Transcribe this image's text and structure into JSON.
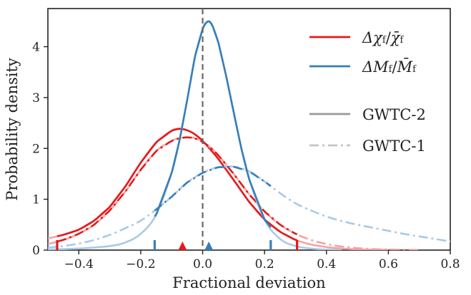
{
  "chart_data": {
    "type": "line",
    "xlabel": "Fractional deviation",
    "ylabel": "Probability density",
    "xlim": [
      -0.5,
      0.8
    ],
    "ylim": [
      0,
      4.75
    ],
    "xticks": [
      -0.4,
      -0.2,
      0.0,
      0.2,
      0.4,
      0.6,
      0.8
    ],
    "xtick_labels": [
      "−0.4",
      "−0.2",
      "0.0",
      "0.2",
      "0.4",
      "0.6",
      "0.8"
    ],
    "yticks": [
      0,
      1,
      2,
      3,
      4
    ],
    "ytick_labels": [
      "0",
      "1",
      "2",
      "3",
      "4"
    ],
    "vertical_reference_line": 0.0,
    "colors": {
      "chi": "#e41a1c",
      "mass": "#377eb8",
      "chi_faded": "#f4a3a4",
      "mass_faded": "#a9c9e6",
      "style_solid": "#999999",
      "style_dashdot": "#c4c4c4",
      "reference": "#666666"
    },
    "series": [
      {
        "key": "chi_gwtc2",
        "color": "chi",
        "style": "solid",
        "x": [
          -0.5,
          -0.45,
          -0.4,
          -0.35,
          -0.3,
          -0.25,
          -0.2,
          -0.15,
          -0.1,
          -0.075,
          -0.05,
          -0.025,
          0.0,
          0.025,
          0.05,
          0.1,
          0.15,
          0.2,
          0.25,
          0.3,
          0.35,
          0.4,
          0.45,
          0.5,
          0.55,
          0.6
        ],
        "y": [
          0.23,
          0.3,
          0.4,
          0.58,
          0.85,
          1.25,
          1.72,
          2.12,
          2.35,
          2.39,
          2.36,
          2.28,
          2.15,
          1.98,
          1.8,
          1.38,
          0.95,
          0.6,
          0.36,
          0.2,
          0.11,
          0.06,
          0.03,
          0.015,
          0.008,
          0.004
        ]
      },
      {
        "key": "chi_gwtc1",
        "color": "chi",
        "style": "dashdot",
        "x": [
          -0.5,
          -0.45,
          -0.4,
          -0.35,
          -0.3,
          -0.25,
          -0.2,
          -0.15,
          -0.1,
          -0.075,
          -0.05,
          -0.025,
          0.0,
          0.025,
          0.05,
          0.1,
          0.15,
          0.2,
          0.25,
          0.3,
          0.35,
          0.4,
          0.45,
          0.5,
          0.55,
          0.6,
          0.65,
          0.7
        ],
        "y": [
          0.12,
          0.2,
          0.32,
          0.5,
          0.78,
          1.15,
          1.58,
          1.95,
          2.15,
          2.2,
          2.22,
          2.2,
          2.13,
          2.02,
          1.87,
          1.5,
          1.1,
          0.76,
          0.5,
          0.32,
          0.2,
          0.12,
          0.07,
          0.04,
          0.02,
          0.012,
          0.006,
          0.003
        ]
      },
      {
        "key": "mass_gwtc2",
        "color": "mass",
        "style": "solid",
        "x": [
          -0.5,
          -0.4,
          -0.3,
          -0.25,
          -0.2,
          -0.15,
          -0.1,
          -0.075,
          -0.05,
          -0.025,
          0.0,
          0.01,
          0.02,
          0.03,
          0.05,
          0.075,
          0.1,
          0.125,
          0.15,
          0.2,
          0.25,
          0.3,
          0.35,
          0.4,
          0.45
        ],
        "y": [
          0.01,
          0.03,
          0.08,
          0.15,
          0.32,
          0.7,
          1.52,
          2.15,
          2.95,
          3.8,
          4.35,
          4.47,
          4.5,
          4.44,
          4.1,
          3.45,
          2.72,
          2.0,
          1.4,
          0.6,
          0.22,
          0.08,
          0.03,
          0.01,
          0.004
        ]
      },
      {
        "key": "mass_gwtc1",
        "color": "mass",
        "style": "dashdot",
        "x": [
          -0.5,
          -0.45,
          -0.4,
          -0.35,
          -0.3,
          -0.25,
          -0.2,
          -0.15,
          -0.1,
          -0.05,
          0.0,
          0.05,
          0.1,
          0.15,
          0.2,
          0.25,
          0.3,
          0.35,
          0.4,
          0.45,
          0.5,
          0.55,
          0.6,
          0.65,
          0.7,
          0.75,
          0.8
        ],
        "y": [
          0.05,
          0.08,
          0.13,
          0.2,
          0.3,
          0.43,
          0.58,
          0.8,
          1.05,
          1.33,
          1.52,
          1.63,
          1.64,
          1.55,
          1.35,
          1.12,
          0.92,
          0.78,
          0.66,
          0.57,
          0.5,
          0.44,
          0.38,
          0.32,
          0.27,
          0.22,
          0.17
        ]
      }
    ],
    "interval_ticks": [
      {
        "color": "chi",
        "x": -0.47
      },
      {
        "color": "chi",
        "x": 0.305
      },
      {
        "color": "mass",
        "x": -0.155
      },
      {
        "color": "mass",
        "x": 0.22
      }
    ],
    "markers": [
      {
        "color": "chi",
        "x": -0.065
      },
      {
        "color": "mass",
        "x": 0.02
      }
    ],
    "legend": {
      "placement": "top-right",
      "entries": [
        {
          "color": "chi",
          "style": "solid",
          "symbol": "Δχ",
          "sub": "f",
          "sep": "/",
          "symbol2": "χ̄",
          "sub2": "f"
        },
        {
          "color": "mass",
          "style": "solid",
          "symbol": "ΔM",
          "sub": "f",
          "sep": "/",
          "symbol2": "M̄",
          "sub2": "f"
        },
        {
          "color": "style_solid",
          "style": "solid",
          "label": "GWTC-2"
        },
        {
          "color": "style_dashdot",
          "style": "dashdot",
          "label": "GWTC-1"
        }
      ]
    }
  }
}
